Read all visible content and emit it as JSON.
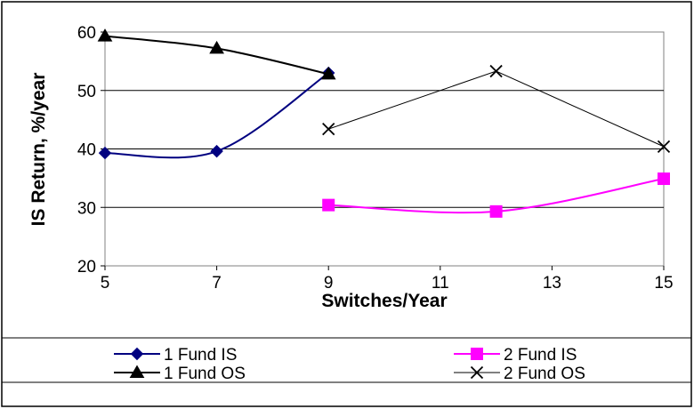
{
  "chart_data": {
    "type": "line",
    "title": "",
    "xlabel": "Switches/Year",
    "ylabel": "IS Return, %/year",
    "xlim": [
      5,
      15
    ],
    "ylim": [
      20,
      60
    ],
    "x_ticks": [
      5,
      7,
      9,
      11,
      13,
      15
    ],
    "y_ticks": [
      20,
      30,
      40,
      50,
      60
    ],
    "grid": "horizontal",
    "legend_position": "bottom",
    "series": [
      {
        "name": "1 Fund IS",
        "color": "#000080",
        "marker": "diamond",
        "line_weight": "medium",
        "x": [
          5,
          7,
          9
        ],
        "y": [
          39.3,
          39.6,
          53
        ]
      },
      {
        "name": "1 Fund OS",
        "color": "#000000",
        "marker": "triangle",
        "line_weight": "medium",
        "x": [
          5,
          7,
          9
        ],
        "y": [
          59.3,
          57.2,
          52.8
        ]
      },
      {
        "name": "2 Fund IS",
        "color": "#ff00ff",
        "marker": "square",
        "line_weight": "medium",
        "x": [
          9,
          12,
          15
        ],
        "y": [
          30.4,
          29.3,
          34.9
        ]
      },
      {
        "name": "2 Fund OS",
        "color": "#000000",
        "marker": "x",
        "line_weight": "thin",
        "x": [
          9,
          12,
          15
        ],
        "y": [
          43.4,
          53.3,
          40.4
        ]
      }
    ]
  }
}
